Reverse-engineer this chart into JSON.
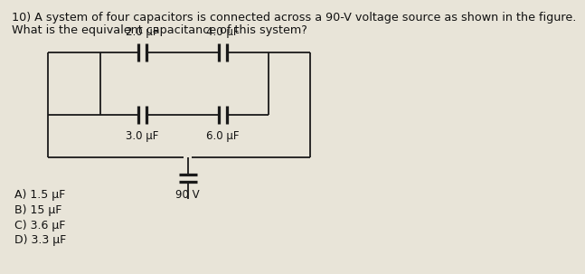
{
  "title_line1": "10) A system of four capacitors is connected across a 90-V voltage source as shown in the figure.",
  "title_line2": "What is the equivalent capacitance of this system?",
  "cap_labels": {
    "C1": "2.0 μF",
    "C2": "4.0 μF",
    "C3": "3.0 μF",
    "C4": "6.0 μF",
    "V": "90 V"
  },
  "answers": [
    "A) 1.5 μF",
    "B) 15 μF",
    "C) 3.6 μF",
    "D) 3.3 μF"
  ],
  "bg_color": "#e8e4d8",
  "line_color": "#1a1a1a",
  "text_color": "#111111",
  "font_size_title": 9.2,
  "font_size_labels": 8.5,
  "font_size_answers": 9.0
}
